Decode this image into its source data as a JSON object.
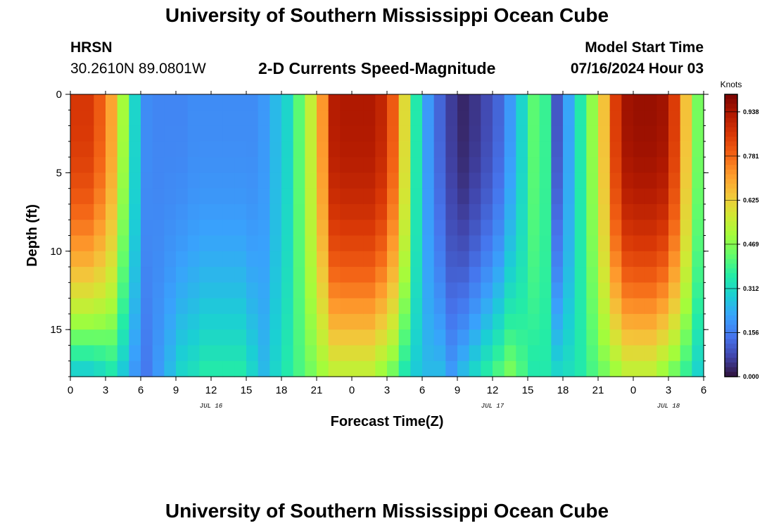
{
  "header": {
    "title": "University of Southern Mississippi Ocean Cube",
    "station": "HRSN",
    "location": "30.2610N  89.0801W",
    "subtitle": "2-D Currents Speed-Magnitude",
    "model_label": "Model Start Time",
    "model_time": "07/16/2024 Hour 03"
  },
  "footer": {
    "title": "University of Southern Mississippi Ocean Cube"
  },
  "chart_data": {
    "type": "heatmap",
    "xlabel": "Forecast Time(Z)",
    "ylabel": "Depth (ft)",
    "colorbar_label": "Knots",
    "x_hours_range": [
      0,
      54
    ],
    "ylim": [
      0,
      18
    ],
    "y_inverted": true,
    "x_ticks": [
      "0",
      "3",
      "6",
      "9",
      "12",
      "15",
      "18",
      "21",
      "0",
      "3",
      "6",
      "9",
      "12",
      "15",
      "18",
      "21",
      "0",
      "3",
      "6"
    ],
    "y_ticks": [
      {
        "value": 0,
        "label": "0"
      },
      {
        "value": 5,
        "label": "5"
      },
      {
        "value": 10,
        "label": "10"
      },
      {
        "value": 15,
        "label": "15"
      }
    ],
    "date_labels": [
      {
        "hour": 12,
        "label": "JUL 16"
      },
      {
        "hour": 36,
        "label": "JUL 17"
      },
      {
        "hour": 51,
        "label": "JUL 18"
      }
    ],
    "colorbar": {
      "min": 0,
      "max": 1.0,
      "ticks": [
        "0.000",
        "0.156",
        "0.312",
        "0.469",
        "0.625",
        "0.781",
        "0.938"
      ],
      "tick_values": [
        0.0,
        0.156,
        0.312,
        0.469,
        0.625,
        0.781,
        0.938
      ]
    },
    "columns": 54,
    "rows": 18,
    "surface_profile_knots": [
      0.86,
      0.86,
      0.8,
      0.7,
      0.5,
      0.3,
      0.18,
      0.17,
      0.17,
      0.17,
      0.18,
      0.18,
      0.18,
      0.18,
      0.18,
      0.18,
      0.2,
      0.25,
      0.3,
      0.42,
      0.55,
      0.72,
      0.92,
      0.93,
      0.93,
      0.93,
      0.9,
      0.8,
      0.6,
      0.35,
      0.2,
      0.12,
      0.06,
      0.03,
      0.05,
      0.08,
      0.12,
      0.2,
      0.3,
      0.42,
      0.38,
      0.1,
      0.22,
      0.35,
      0.48,
      0.65,
      0.85,
      0.95,
      0.96,
      0.96,
      0.95,
      0.85,
      0.65,
      0.45
    ],
    "deep_profile_knots": [
      0.3,
      0.3,
      0.32,
      0.35,
      0.28,
      0.2,
      0.15,
      0.2,
      0.25,
      0.3,
      0.32,
      0.35,
      0.35,
      0.35,
      0.35,
      0.3,
      0.25,
      0.3,
      0.35,
      0.4,
      0.45,
      0.5,
      0.55,
      0.55,
      0.55,
      0.55,
      0.5,
      0.45,
      0.35,
      0.28,
      0.25,
      0.25,
      0.2,
      0.25,
      0.3,
      0.35,
      0.4,
      0.45,
      0.4,
      0.35,
      0.35,
      0.3,
      0.32,
      0.35,
      0.4,
      0.45,
      0.5,
      0.55,
      0.55,
      0.55,
      0.5,
      0.45,
      0.38,
      0.3
    ]
  },
  "colors": {
    "colormap": [
      "#30123b",
      "#4145ab",
      "#4675ed",
      "#39a2fc",
      "#1bcfd4",
      "#24eca6",
      "#61fc6c",
      "#a4fc3b",
      "#d1e834",
      "#f3c63a",
      "#fe9b2d",
      "#f36315",
      "#d93806",
      "#b11901",
      "#7a0402"
    ]
  }
}
